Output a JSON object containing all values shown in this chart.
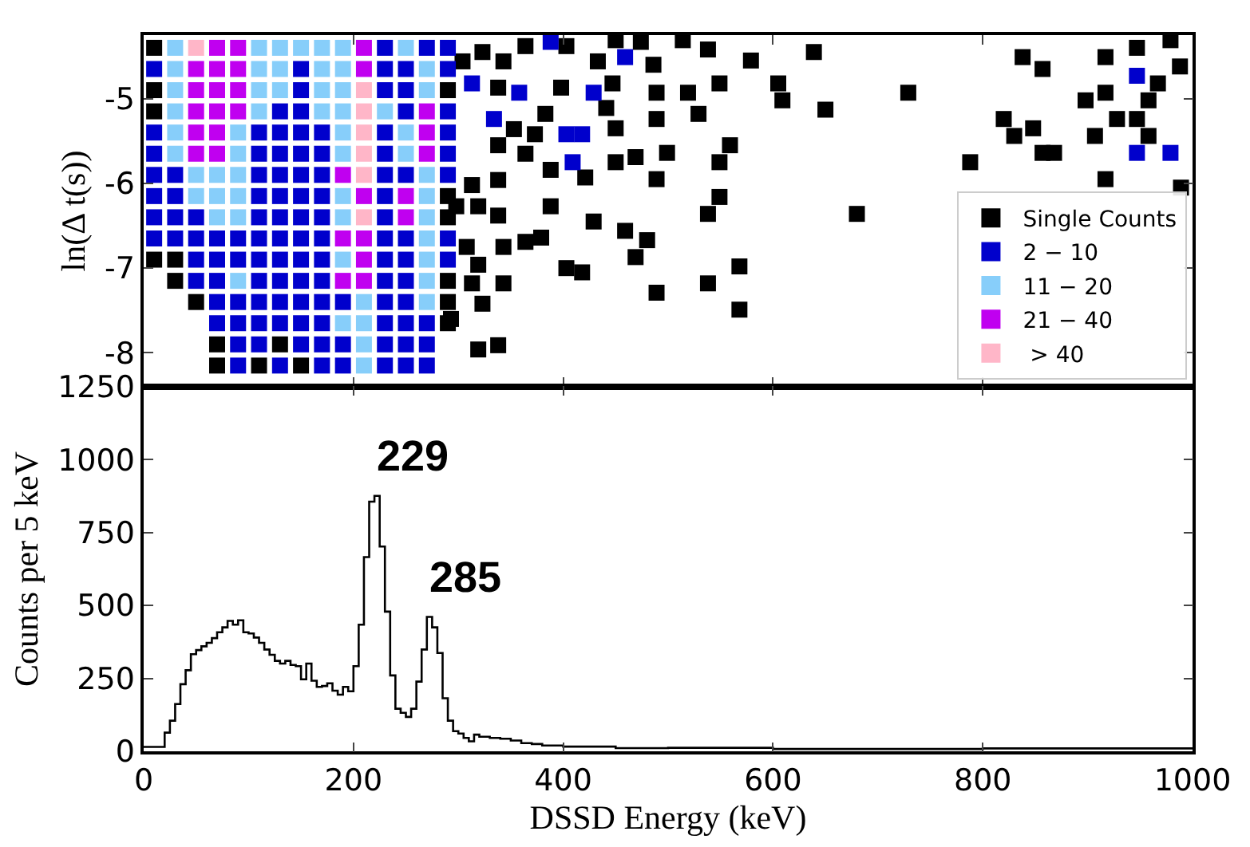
{
  "chart_data": [
    {
      "type": "scatter",
      "ylabel": "ln(Δ t(s))",
      "xlim": [
        0,
        1000
      ],
      "xticks": [
        {
          "value": 0,
          "label": null
        },
        {
          "value": 200,
          "label": null
        },
        {
          "value": 400,
          "label": null
        },
        {
          "value": 600,
          "label": null
        },
        {
          "value": 800,
          "label": null
        },
        {
          "value": 1000,
          "label": null
        }
      ],
      "ylim": [
        -8.4,
        -4.25
      ],
      "yticks": [
        -8,
        -7,
        -6,
        -5
      ],
      "tick_labels": "y",
      "legend": "bottom right",
      "marker": "square",
      "series": [
        {
          "name": "Single Counts",
          "color": "#000000",
          "x": [
            10,
            10,
            10,
            290,
            290,
            290,
            10,
            30,
            30,
            290,
            50,
            290,
            290,
            70,
            130,
            70,
            110,
            150,
            304,
            323,
            343,
            364,
            403,
            433,
            338,
            383,
            398,
            353,
            373,
            338,
            364,
            388,
            421,
            313,
            338,
            298,
            319,
            338,
            388,
            429,
            308,
            343,
            364,
            379,
            319,
            403,
            418,
            313,
            343,
            323,
            293,
            319,
            338,
            450,
            474,
            514,
            538,
            579,
            639,
            486,
            447,
            489,
            519,
            549,
            605,
            609,
            650,
            729,
            441,
            489,
            529,
            450,
            559,
            469,
            450,
            499,
            549,
            489,
            549,
            538,
            680,
            459,
            480,
            469,
            568,
            489,
            538,
            568,
            788,
            838,
            857,
            917,
            947,
            979,
            820,
            830,
            848,
            857,
            868,
            907,
            898,
            917,
            928,
            947,
            958,
            967,
            958,
            917,
            988,
            989
          ],
          "values": [
            -4.4,
            -4.9,
            -5.15,
            -4.9,
            -6.15,
            -6.4,
            -6.9,
            -6.9,
            -7.15,
            -7.15,
            -7.4,
            -7.4,
            -7.65,
            -7.9,
            -7.9,
            -8.15,
            -8.15,
            -8.15,
            -4.56,
            -4.45,
            -4.56,
            -4.38,
            -4.38,
            -4.56,
            -4.87,
            -5.18,
            -4.87,
            -5.36,
            -5.42,
            -5.55,
            -5.65,
            -5.84,
            -5.93,
            -6.02,
            -5.96,
            -6.27,
            -6.27,
            -6.38,
            -6.27,
            -6.45,
            -6.75,
            -6.75,
            -6.69,
            -6.64,
            -6.96,
            -7.0,
            -7.05,
            -7.18,
            -7.18,
            -7.42,
            -7.6,
            -7.96,
            -7.91,
            -4.31,
            -4.33,
            -4.31,
            -4.42,
            -4.55,
            -4.45,
            -4.6,
            -4.82,
            -4.93,
            -4.93,
            -4.82,
            -4.82,
            -5.02,
            -5.13,
            -4.93,
            -5.11,
            -5.24,
            -5.18,
            -5.35,
            -5.55,
            -5.69,
            -5.75,
            -5.64,
            -5.75,
            -5.95,
            -6.16,
            -6.36,
            -6.36,
            -6.56,
            -6.67,
            -6.87,
            -6.98,
            -7.29,
            -7.18,
            -7.49,
            -5.75,
            -4.51,
            -4.65,
            -4.51,
            -4.4,
            -4.31,
            -5.24,
            -5.44,
            -5.35,
            -5.64,
            -5.64,
            -5.44,
            -5.02,
            -4.93,
            -5.24,
            -5.24,
            -5.44,
            -4.82,
            -5.02,
            -5.95,
            -4.62,
            -6.05
          ]
        },
        {
          "name": "2 − 10",
          "color": "#0000cc",
          "x": [
            230,
            270,
            290,
            10,
            150,
            230,
            250,
            290,
            150,
            230,
            250,
            130,
            150,
            250,
            290,
            10,
            110,
            130,
            150,
            170,
            230,
            290,
            10,
            110,
            130,
            150,
            170,
            230,
            290,
            10,
            30,
            110,
            130,
            150,
            170,
            230,
            250,
            290,
            10,
            30,
            110,
            130,
            150,
            170,
            230,
            10,
            30,
            50,
            110,
            130,
            150,
            170,
            230,
            10,
            30,
            50,
            70,
            90,
            110,
            130,
            150,
            170,
            230,
            250,
            290,
            50,
            70,
            90,
            110,
            130,
            150,
            170,
            230,
            250,
            290,
            50,
            70,
            110,
            130,
            150,
            170,
            230,
            250,
            70,
            90,
            110,
            130,
            150,
            170,
            190,
            230,
            250,
            70,
            90,
            110,
            130,
            150,
            170,
            230,
            250,
            270,
            90,
            110,
            150,
            170,
            190,
            230,
            250,
            270,
            90,
            130,
            170,
            190,
            230,
            250,
            270,
            388,
            313,
            358,
            429,
            334,
            403,
            418,
            409,
            459,
            947,
            947,
            979
          ],
          "values": [
            -4.4,
            -4.4,
            -4.4,
            -4.65,
            -4.65,
            -4.65,
            -4.65,
            -4.65,
            -4.9,
            -4.9,
            -4.9,
            -5.15,
            -5.15,
            -5.15,
            -5.15,
            -5.4,
            -5.4,
            -5.4,
            -5.4,
            -5.4,
            -5.4,
            -5.4,
            -5.65,
            -5.65,
            -5.65,
            -5.65,
            -5.65,
            -5.65,
            -5.65,
            -5.9,
            -5.9,
            -5.9,
            -5.9,
            -5.9,
            -5.9,
            -5.9,
            -5.9,
            -5.9,
            -6.15,
            -6.15,
            -6.15,
            -6.15,
            -6.15,
            -6.15,
            -6.15,
            -6.4,
            -6.4,
            -6.4,
            -6.4,
            -6.4,
            -6.4,
            -6.4,
            -6.4,
            -6.65,
            -6.65,
            -6.65,
            -6.65,
            -6.65,
            -6.65,
            -6.65,
            -6.65,
            -6.65,
            -6.65,
            -6.65,
            -6.65,
            -6.9,
            -6.9,
            -6.9,
            -6.9,
            -6.9,
            -6.9,
            -6.9,
            -6.9,
            -6.9,
            -6.9,
            -7.15,
            -7.15,
            -7.15,
            -7.15,
            -7.15,
            -7.15,
            -7.15,
            -7.15,
            -7.4,
            -7.4,
            -7.4,
            -7.4,
            -7.4,
            -7.4,
            -7.4,
            -7.4,
            -7.4,
            -7.65,
            -7.65,
            -7.65,
            -7.65,
            -7.65,
            -7.65,
            -7.65,
            -7.65,
            -7.65,
            -7.9,
            -7.9,
            -7.9,
            -7.9,
            -7.9,
            -7.9,
            -7.9,
            -7.9,
            -8.15,
            -8.15,
            -8.15,
            -8.15,
            -8.15,
            -8.15,
            -8.15,
            -4.33,
            -4.82,
            -4.93,
            -4.93,
            -5.24,
            -5.42,
            -5.42,
            -5.75,
            -4.51,
            -4.73,
            -5.64,
            -5.64
          ]
        },
        {
          "name": "11 − 20",
          "color": "#87cefa",
          "x": [
            30,
            110,
            130,
            150,
            170,
            190,
            250,
            30,
            110,
            130,
            170,
            190,
            270,
            30,
            110,
            130,
            170,
            190,
            270,
            30,
            110,
            170,
            190,
            230,
            30,
            90,
            190,
            250,
            30,
            90,
            190,
            250,
            50,
            70,
            90,
            270,
            50,
            70,
            90,
            190,
            270,
            70,
            90,
            190,
            270,
            270,
            190,
            270,
            90,
            270,
            210,
            270,
            190,
            210,
            210,
            210
          ],
          "values": [
            -4.4,
            -4.4,
            -4.4,
            -4.4,
            -4.4,
            -4.4,
            -4.4,
            -4.65,
            -4.65,
            -4.65,
            -4.65,
            -4.65,
            -4.65,
            -4.9,
            -4.9,
            -4.9,
            -4.9,
            -4.9,
            -4.9,
            -5.15,
            -5.15,
            -5.15,
            -5.15,
            -5.15,
            -5.4,
            -5.4,
            -5.4,
            -5.4,
            -5.65,
            -5.65,
            -5.65,
            -5.65,
            -5.9,
            -5.9,
            -5.9,
            -5.9,
            -6.15,
            -6.15,
            -6.15,
            -6.15,
            -6.15,
            -6.4,
            -6.4,
            -6.4,
            -6.4,
            -6.65,
            -6.9,
            -6.9,
            -7.15,
            -7.15,
            -7.4,
            -7.4,
            -7.65,
            -7.65,
            -7.9,
            -8.15
          ]
        },
        {
          "name": "21 − 40",
          "color": "#c000f0",
          "x": [
            70,
            90,
            210,
            50,
            70,
            90,
            210,
            50,
            70,
            90,
            50,
            70,
            90,
            270,
            50,
            70,
            270,
            50,
            70,
            270,
            190,
            210,
            250,
            250,
            190,
            210,
            210,
            190,
            210
          ],
          "values": [
            -4.4,
            -4.4,
            -4.4,
            -4.65,
            -4.65,
            -4.65,
            -4.65,
            -4.9,
            -4.9,
            -4.9,
            -5.15,
            -5.15,
            -5.15,
            -5.15,
            -5.4,
            -5.4,
            -5.4,
            -5.65,
            -5.65,
            -5.65,
            -5.9,
            -6.15,
            -6.15,
            -6.4,
            -6.65,
            -6.65,
            -6.9,
            -7.15,
            -7.15
          ]
        },
        {
          "name": " > 40",
          "color": "#ffb6c8",
          "x": [
            50,
            210,
            210,
            210,
            210,
            210,
            210
          ],
          "values": [
            -4.4,
            -4.9,
            -5.15,
            -5.4,
            -5.65,
            -5.9,
            -6.4
          ]
        }
      ]
    },
    {
      "type": "histogram",
      "xlabel": "DSSD Energy (keV)",
      "ylabel": "Counts per 5 keV",
      "xlim": [
        0,
        1000
      ],
      "xticks": [
        0,
        200,
        400,
        600,
        800,
        1000
      ],
      "ylim": [
        0,
        1250
      ],
      "yticks": [
        0,
        250,
        500,
        750,
        1000,
        1250
      ],
      "color": "#000000",
      "bins": [
        0,
        10,
        20,
        25,
        30,
        35,
        40,
        45,
        50,
        55,
        60,
        65,
        70,
        75,
        80,
        85,
        90,
        95,
        100,
        105,
        110,
        115,
        120,
        125,
        130,
        135,
        140,
        145,
        150,
        155,
        160,
        165,
        170,
        175,
        180,
        185,
        190,
        195,
        200,
        205,
        210,
        215,
        220,
        225,
        230,
        235,
        240,
        245,
        250,
        255,
        260,
        265,
        270,
        275,
        280,
        285,
        290,
        295,
        300,
        305,
        310,
        315,
        320,
        330,
        340,
        350,
        360,
        370,
        380,
        400,
        450,
        500,
        600,
        800,
        1000
      ],
      "values": [
        15,
        15,
        64,
        105,
        162,
        230,
        278,
        333,
        347,
        360,
        372,
        388,
        408,
        425,
        447,
        434,
        449,
        408,
        404,
        390,
        372,
        349,
        331,
        310,
        301,
        310,
        296,
        292,
        247,
        301,
        242,
        221,
        224,
        233,
        208,
        194,
        221,
        206,
        292,
        434,
        666,
        856,
        876,
        702,
        479,
        260,
        146,
        132,
        118,
        146,
        239,
        349,
        461,
        425,
        337,
        182,
        105,
        69,
        61,
        46,
        34,
        57,
        50,
        46,
        43,
        37,
        28,
        25,
        20,
        16,
        11,
        12,
        8,
        10
      ],
      "annotations": [
        {
          "text": "229",
          "x": 222.5,
          "y": 876
        },
        {
          "text": "285",
          "x": 272.5,
          "y": 461
        }
      ]
    }
  ]
}
